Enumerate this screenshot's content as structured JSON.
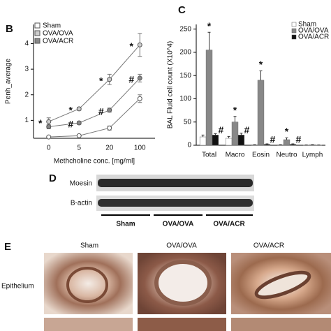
{
  "chart_data": [
    {
      "type": "line",
      "panel": "B",
      "ylabel": "Penh_average",
      "xlabel": "Methcholine conc. [mg/ml]",
      "categories": [
        "0",
        "5",
        "20",
        "100"
      ],
      "ylim": [
        0.3,
        4.75
      ],
      "yticks": [
        1,
        2,
        3,
        4
      ],
      "legend": "upper-left",
      "series": [
        {
          "name": "Sham",
          "color": "#777777",
          "marker": "#ffffff",
          "values": [
            0.35,
            0.4,
            0.7,
            1.85
          ],
          "errors": [
            0.04,
            0.04,
            0.08,
            0.15
          ],
          "annotations": [
            null,
            null,
            null,
            null
          ]
        },
        {
          "name": "OVA/OVA",
          "color": "#777777",
          "marker": "#cccccc",
          "values": [
            0.95,
            1.45,
            2.6,
            3.95
          ],
          "errors": [
            0.15,
            0.06,
            0.2,
            0.45
          ],
          "annotations": [
            "*",
            "*",
            "*",
            "*"
          ]
        },
        {
          "name": "OVA/ACR",
          "color": "#777777",
          "marker": "#888888",
          "values": [
            0.75,
            0.9,
            1.4,
            2.65
          ],
          "errors": [
            0.08,
            0.06,
            0.08,
            0.15
          ],
          "annotations": [
            null,
            "#",
            "#",
            "#"
          ]
        }
      ]
    },
    {
      "type": "bar",
      "panel": "C",
      "ylabel": "BAL Fluid cell count (X10^4)",
      "categories": [
        "Total",
        "Macro",
        "Eosin",
        "Neutro",
        "Lymph"
      ],
      "ylim": [
        0,
        260
      ],
      "yticks": [
        0,
        50,
        100,
        150,
        200,
        250
      ],
      "legend": "upper-right",
      "series": [
        {
          "name": "Sham",
          "color": "#ffffff",
          "values": [
            18,
            15,
            1,
            1,
            0.5
          ],
          "errors": [
            4,
            4,
            0.5,
            0.5,
            0.3
          ],
          "annotations": [
            null,
            null,
            null,
            null,
            null
          ]
        },
        {
          "name": "OVA/OVA",
          "color": "#888888",
          "values": [
            205,
            50,
            140,
            12,
            1
          ],
          "errors": [
            38,
            12,
            20,
            4,
            0.5
          ],
          "annotations": [
            "*",
            "*",
            "*",
            "*",
            null
          ]
        },
        {
          "name": "OVA/ACR",
          "color": "#111111",
          "values": [
            22,
            22,
            2,
            2,
            0.5
          ],
          "errors": [
            3,
            4,
            1,
            1,
            0.3
          ],
          "annotations": [
            "#",
            "#",
            "#",
            "#",
            null
          ]
        }
      ]
    }
  ],
  "blot": {
    "panel": "D",
    "rows": [
      "Moesin",
      "B-actin"
    ],
    "groups": [
      "Sham",
      "OVA/OVA",
      "OVA/ACR"
    ]
  },
  "histology": {
    "panel": "E",
    "columns": [
      "Sham",
      "OVA/OVA",
      "OVA/ACR"
    ],
    "rows": [
      "Epithelium"
    ]
  }
}
